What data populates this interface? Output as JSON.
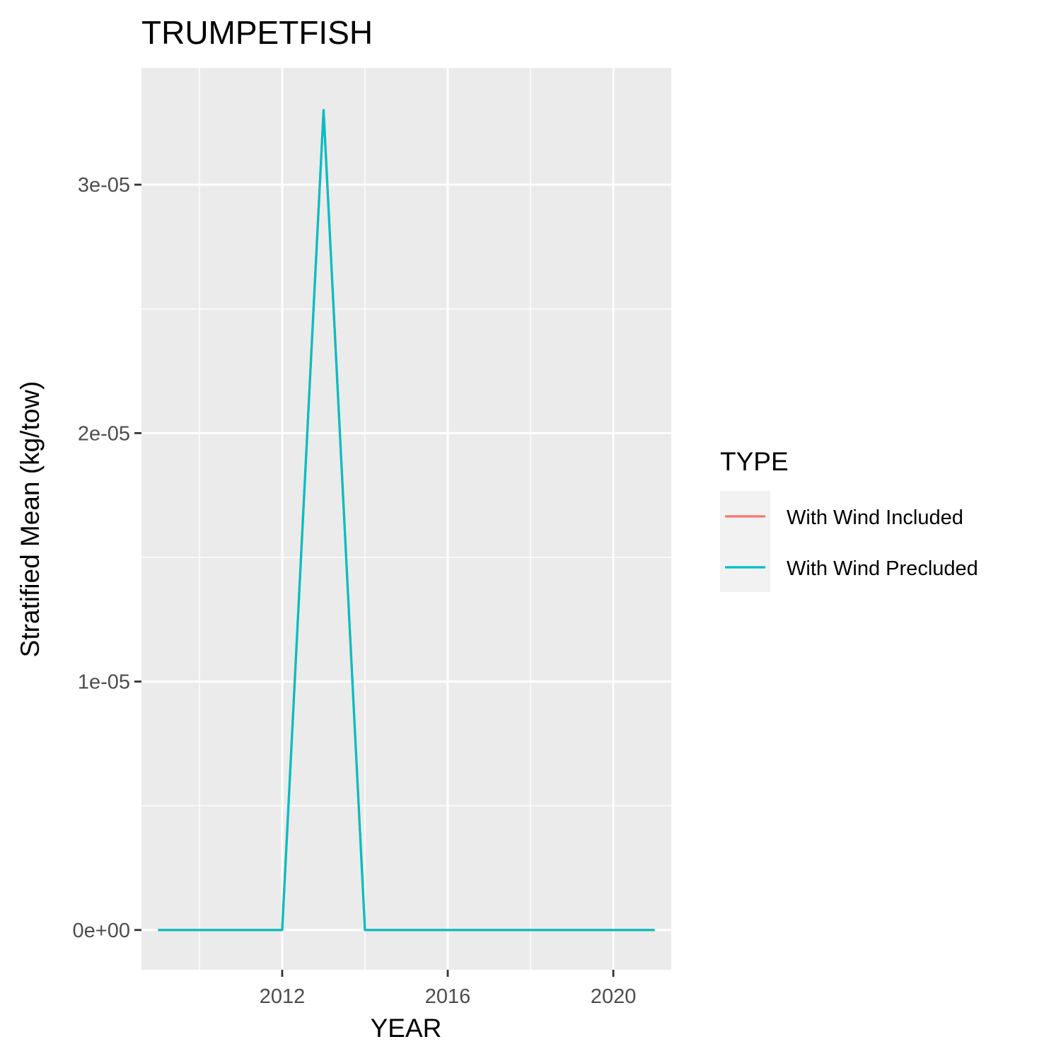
{
  "chart_data": {
    "type": "line",
    "title": "TRUMPETFISH",
    "xlabel": "YEAR",
    "ylabel": "Stratified Mean (kg/tow)",
    "xlim": [
      2008.6,
      2021.4
    ],
    "ylim": [
      -1.6e-06,
      3.47e-05
    ],
    "x_ticks": [
      2012,
      2016,
      2020
    ],
    "x_minor_ticks": [
      2010,
      2014,
      2018
    ],
    "y_ticks": [
      0,
      1e-05,
      2e-05,
      3e-05
    ],
    "y_tick_labels": [
      "0e+00",
      "1e-05",
      "2e-05",
      "3e-05"
    ],
    "y_minor_ticks": [
      5e-06,
      1.5e-05,
      2.5e-05
    ],
    "grid": true,
    "panel_background": "#ebebeb",
    "grid_color": "#ffffff",
    "x": [
      2009,
      2010,
      2011,
      2012,
      2013,
      2014,
      2015,
      2016,
      2017,
      2018,
      2019,
      2020,
      2021
    ],
    "series": [
      {
        "name": "With Wind Included",
        "color": "#f8766d",
        "values": [
          0,
          0,
          0,
          0,
          3.3e-05,
          0,
          0,
          0,
          0,
          0,
          0,
          0,
          0
        ]
      },
      {
        "name": "With Wind Precluded",
        "color": "#00bfc4",
        "values": [
          0,
          0,
          0,
          0,
          3.3e-05,
          0,
          0,
          0,
          0,
          0,
          0,
          0,
          0
        ]
      }
    ],
    "legend": {
      "title": "TYPE",
      "position": "right",
      "background": "#f2f2f2"
    }
  }
}
